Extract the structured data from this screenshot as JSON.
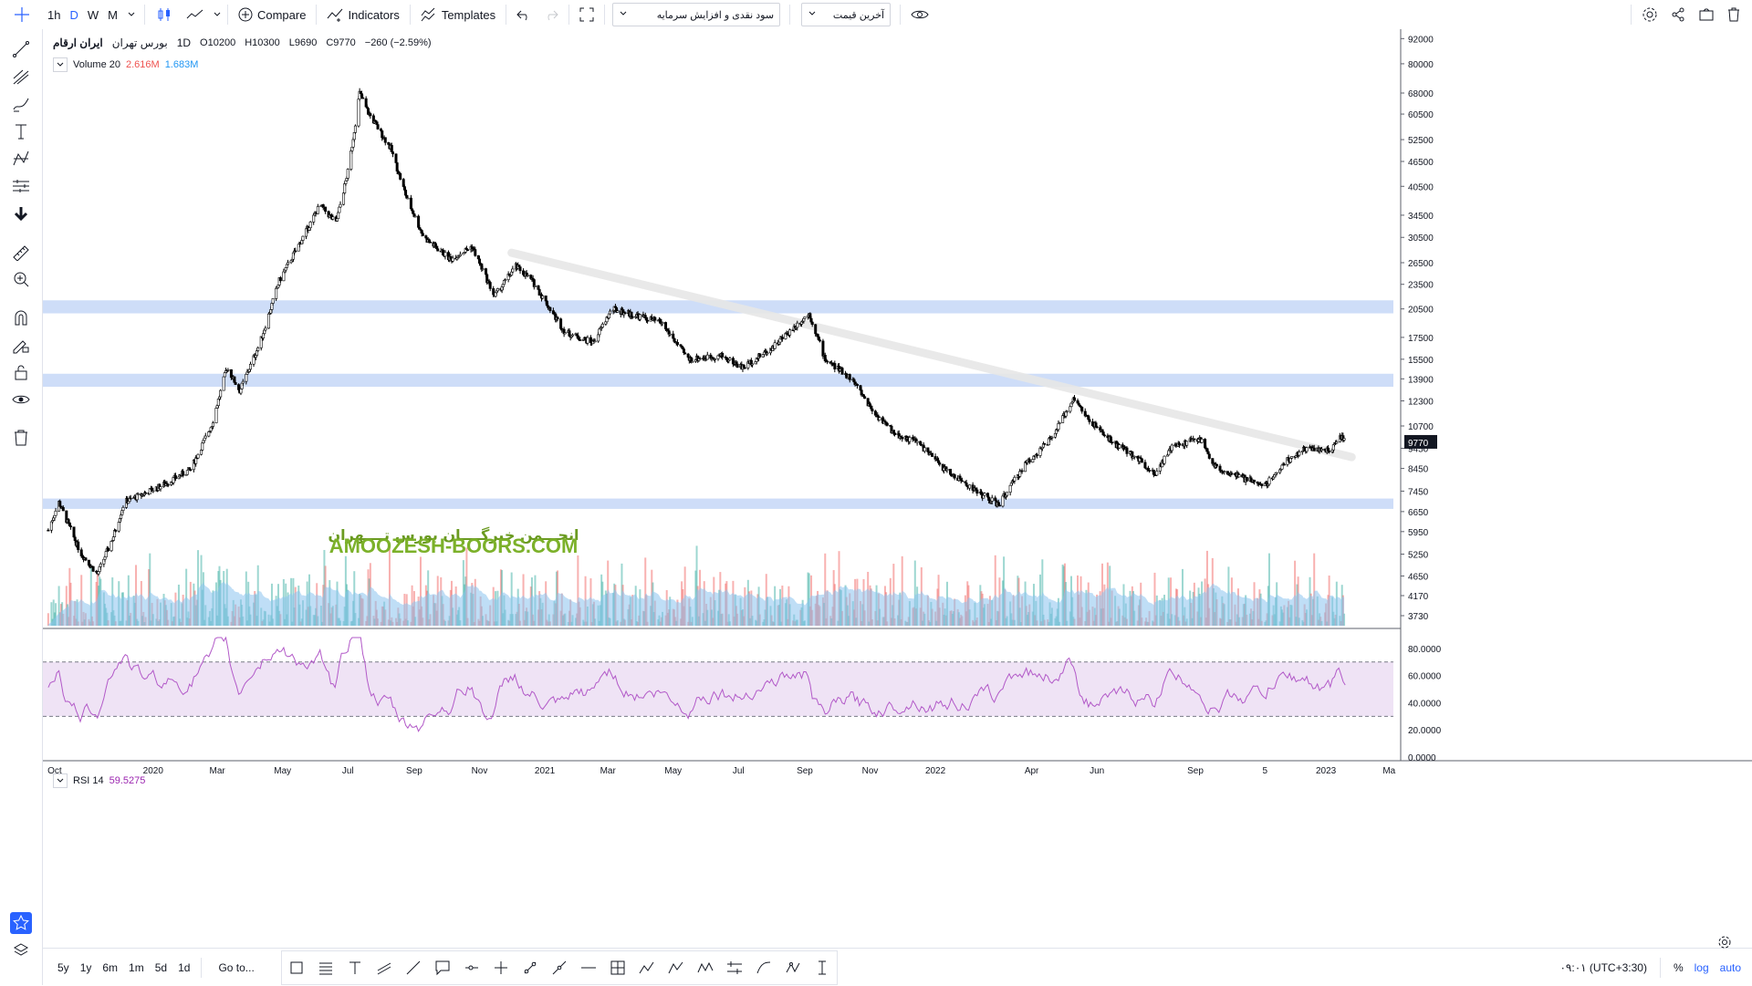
{
  "toolbar": {
    "intervals": [
      "1h",
      "D",
      "W",
      "M"
    ],
    "active_interval": "D",
    "compare_label": "Compare",
    "indicators_label": "Indicators",
    "templates_label": "Templates",
    "adjust_select": "سود نقدی و افزایش سرمایه",
    "price_select": "آخرین قیمت"
  },
  "legend": {
    "symbol": "ایران ارقام",
    "exchange": "بورس تهران",
    "interval": "1D",
    "open": "O10200",
    "high": "H10300",
    "low": "L9690",
    "close": "C9770",
    "change": "−260 (−2.59%)",
    "volume_label": "Volume 20",
    "volume_value": "2.616M",
    "volume_ma": "1.683M",
    "rsi_label": "RSI 14",
    "rsi_value": "59.5275"
  },
  "watermark": {
    "line1": "انجـــمن خبرگــــان بورس تــــهران",
    "line2": "AMOOZESH-BOORS.COM"
  },
  "colors": {
    "up": "#26a69a",
    "down": "#ef5350",
    "candle": "#000000",
    "zone": "#c9d9f7",
    "trendline": "#e7e7e7",
    "rsi": "#b259c8",
    "rsi_band": "#efe3f5",
    "vol_ma": "#8ac2ee",
    "accent": "#2962ff"
  },
  "chart_data": {
    "type": "candlestick",
    "scale": "log",
    "x_tick_labels": [
      "Oct",
      "2020",
      "Mar",
      "May",
      "Jul",
      "Sep",
      "Nov",
      "2021",
      "Mar",
      "May",
      "Jul",
      "Sep",
      "Nov",
      "2022",
      "Apr",
      "Jun",
      "Sep",
      "5",
      "2023",
      "Ma"
    ],
    "y_tick_labels": [
      "92000",
      "80000",
      "68000",
      "60500",
      "52500",
      "46500",
      "40500",
      "34500",
      "30500",
      "26500",
      "23500",
      "20500",
      "17500",
      "15500",
      "13900",
      "12300",
      "10700",
      "9450",
      "8450",
      "7450",
      "6650",
      "5950",
      "5250",
      "4650",
      "4170",
      "3730"
    ],
    "last_price": "9770",
    "price_path": [
      [
        "2019-09-25",
        6000
      ],
      [
        "2019-10-05",
        7000
      ],
      [
        "2019-10-25",
        5300
      ],
      [
        "2019-11-10",
        4700
      ],
      [
        "2019-11-25",
        5800
      ],
      [
        "2019-12-05",
        7000
      ],
      [
        "2020-01-10",
        7700
      ],
      [
        "2020-02-05",
        8400
      ],
      [
        "2020-02-25",
        10800
      ],
      [
        "2020-03-10",
        14800
      ],
      [
        "2020-03-22",
        13000
      ],
      [
        "2020-04-10",
        17000
      ],
      [
        "2020-04-28",
        24000
      ],
      [
        "2020-05-20",
        30500
      ],
      [
        "2020-06-05",
        36500
      ],
      [
        "2020-06-20",
        33000
      ],
      [
        "2020-07-02",
        45000
      ],
      [
        "2020-07-12",
        68000
      ],
      [
        "2020-07-20",
        61000
      ],
      [
        "2020-08-10",
        50000
      ],
      [
        "2020-08-25",
        38000
      ],
      [
        "2020-09-10",
        30500
      ],
      [
        "2020-10-05",
        27000
      ],
      [
        "2020-10-25",
        29000
      ],
      [
        "2020-11-15",
        22000
      ],
      [
        "2020-12-05",
        26000
      ],
      [
        "2020-12-20",
        24000
      ],
      [
        "2021-01-20",
        18000
      ],
      [
        "2021-02-15",
        17000
      ],
      [
        "2021-03-05",
        20500
      ],
      [
        "2021-04-20",
        19000
      ],
      [
        "2021-05-15",
        15500
      ],
      [
        "2021-06-15",
        15800
      ],
      [
        "2021-07-05",
        14800
      ],
      [
        "2021-08-01",
        16500
      ],
      [
        "2021-09-05",
        20000
      ],
      [
        "2021-09-20",
        15500
      ],
      [
        "2021-10-15",
        13900
      ],
      [
        "2021-11-05",
        11500
      ],
      [
        "2021-11-25",
        10200
      ],
      [
        "2021-12-15",
        9800
      ],
      [
        "2022-01-10",
        8400
      ],
      [
        "2022-02-10",
        7400
      ],
      [
        "2022-03-01",
        6900
      ],
      [
        "2022-03-25",
        8600
      ],
      [
        "2022-04-20",
        10000
      ],
      [
        "2022-05-10",
        12500
      ],
      [
        "2022-05-25",
        11000
      ],
      [
        "2022-06-15",
        9800
      ],
      [
        "2022-07-10",
        8900
      ],
      [
        "2022-07-25",
        8200
      ],
      [
        "2022-08-10",
        9500
      ],
      [
        "2022-09-05",
        10000
      ],
      [
        "2022-09-20",
        8500
      ],
      [
        "2022-10-15",
        8000
      ],
      [
        "2022-11-05",
        7700
      ],
      [
        "2022-11-25",
        8800
      ],
      [
        "2022-12-15",
        9500
      ],
      [
        "2023-01-05",
        9300
      ],
      [
        "2023-01-15",
        10100
      ],
      [
        "2023-01-20",
        9770
      ]
    ],
    "support_zones": [
      [
        20000,
        21500
      ],
      [
        13300,
        14300
      ],
      [
        6750,
        7150
      ]
    ],
    "trendline": [
      [
        "2020-12-01",
        28000
      ],
      [
        "2023-01-25",
        9000
      ]
    ],
    "rsi": {
      "overbought": 70,
      "oversold": 30,
      "last": 59.5275,
      "y_tick_labels": [
        "80.0000",
        "60.0000",
        "40.0000",
        "20.0000",
        "0.0000"
      ]
    }
  },
  "bottom": {
    "ranges": [
      "5y",
      "1y",
      "6m",
      "1m",
      "5d",
      "1d"
    ],
    "goto_label": "Go to...",
    "clock": "۰۹:۰۱ (UTC+3:30)",
    "percent": "%",
    "log": "log",
    "auto": "auto"
  }
}
